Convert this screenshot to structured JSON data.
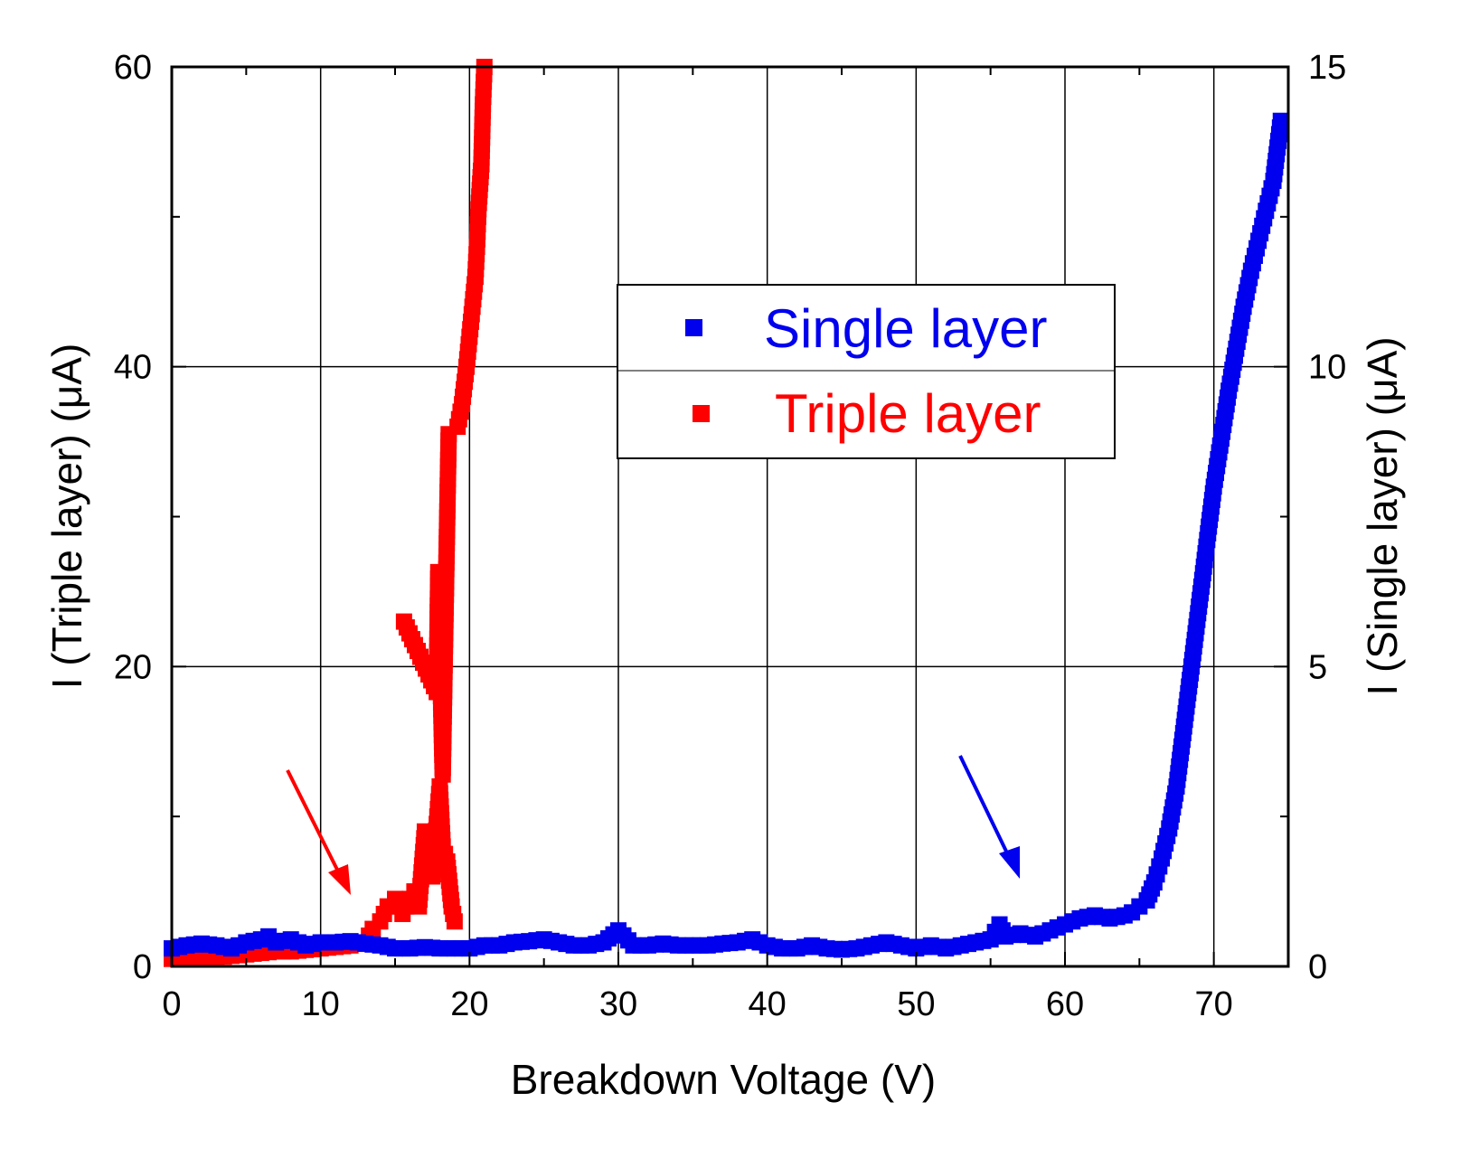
{
  "chart_data": {
    "type": "scatter",
    "xlabel": "Breakdown Voltage (V)",
    "ylabel_left": "I (Triple layer) (μA)",
    "ylabel_right": "I (Single layer) (μA)",
    "xlim": [
      0,
      75
    ],
    "ylim_left": [
      0,
      60
    ],
    "ylim_right": [
      0,
      15
    ],
    "x_ticks": [
      0,
      10,
      20,
      30,
      40,
      50,
      60,
      70
    ],
    "y_left_ticks": [
      0,
      20,
      40,
      60
    ],
    "y_right_ticks": [
      0,
      5,
      10,
      15
    ],
    "grid": true,
    "legend_position": "center",
    "series": [
      {
        "name": "Single layer",
        "color": "#0000ee",
        "axis": "right",
        "x": [
          0,
          1,
          2,
          3,
          4,
          5,
          6,
          6.5,
          7,
          8,
          9,
          10,
          11,
          12,
          13,
          14,
          15,
          16,
          17,
          18,
          19,
          20,
          21,
          22,
          23,
          24,
          25,
          26,
          27,
          28,
          29,
          30,
          31,
          32,
          33,
          34,
          35,
          36,
          37,
          38,
          39,
          40,
          41,
          42,
          43,
          44,
          45,
          46,
          47,
          48,
          49,
          50,
          51,
          52,
          53,
          54,
          55,
          55.6,
          56,
          57,
          58,
          59,
          60,
          61,
          62,
          63,
          64,
          64.5,
          65,
          65.5,
          66,
          66.5,
          67,
          67.5,
          68,
          68.5,
          69,
          69.5,
          70,
          70.5,
          71,
          71.5,
          72,
          72.5,
          73,
          73.5,
          74,
          74.5
        ],
        "y": [
          0.3,
          0.35,
          0.38,
          0.35,
          0.3,
          0.4,
          0.45,
          0.5,
          0.4,
          0.45,
          0.35,
          0.4,
          0.4,
          0.42,
          0.38,
          0.35,
          0.3,
          0.3,
          0.32,
          0.3,
          0.3,
          0.3,
          0.35,
          0.35,
          0.4,
          0.42,
          0.45,
          0.4,
          0.35,
          0.35,
          0.4,
          0.6,
          0.35,
          0.35,
          0.38,
          0.35,
          0.35,
          0.35,
          0.38,
          0.4,
          0.45,
          0.35,
          0.3,
          0.3,
          0.35,
          0.3,
          0.28,
          0.3,
          0.35,
          0.4,
          0.35,
          0.3,
          0.35,
          0.3,
          0.35,
          0.4,
          0.45,
          0.7,
          0.5,
          0.55,
          0.5,
          0.6,
          0.7,
          0.8,
          0.85,
          0.8,
          0.85,
          0.9,
          1.0,
          1.1,
          1.4,
          1.8,
          2.3,
          3.0,
          4.0,
          5.0,
          6.0,
          7.0,
          8.0,
          8.8,
          9.6,
          10.3,
          11.0,
          11.6,
          12.1,
          12.6,
          13.1,
          14.1
        ]
      },
      {
        "name": "Triple layer",
        "color": "#ff0000",
        "axis": "left",
        "x": [
          0,
          1,
          2,
          3,
          4,
          5,
          6,
          7,
          8,
          9,
          10,
          11,
          12,
          13,
          13.5,
          14,
          14.5,
          15,
          15.5,
          16,
          16.3,
          16.6,
          17,
          17.2,
          17.5,
          17.8,
          18,
          18.2,
          18.5,
          18.8,
          19,
          15.6,
          17.8,
          17.9,
          18.2,
          18.6,
          19.2,
          19.5,
          19.8,
          20,
          20.2,
          20.4,
          20.5,
          20.6,
          20.8,
          20.9,
          21.0
        ],
        "y": [
          0.5,
          0.5,
          0.5,
          0.6,
          0.7,
          0.8,
          0.9,
          1.0,
          1.0,
          1.1,
          1.2,
          1.3,
          1.4,
          1.6,
          2.5,
          3.0,
          4.0,
          4.5,
          3.5,
          4.5,
          5.0,
          4.0,
          9.0,
          7.0,
          6.0,
          9.5,
          12.0,
          8.0,
          7.0,
          4.0,
          3.0,
          23.0,
          18.3,
          26.3,
          12.8,
          35.5,
          36.0,
          37.5,
          40.0,
          42.0,
          44.0,
          46.0,
          48.0,
          50.5,
          53.5,
          57.5,
          60.0
        ]
      }
    ],
    "legend": [
      "Single layer",
      "Triple layer"
    ]
  }
}
